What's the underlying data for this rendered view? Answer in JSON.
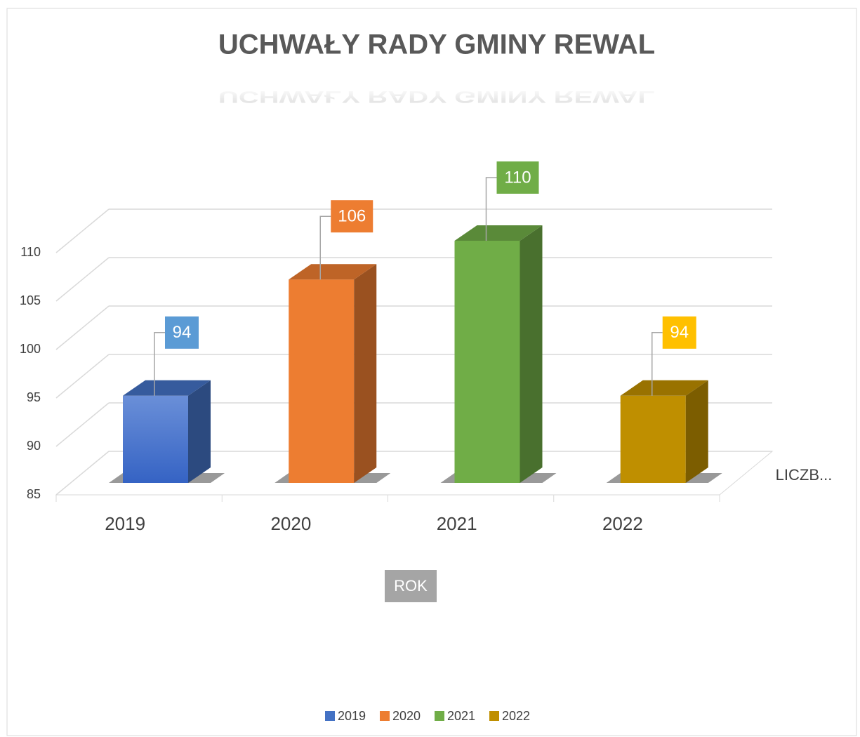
{
  "chart_data": {
    "type": "bar3d",
    "title": "UCHWAŁY RADY GMINY REWAL",
    "categories": [
      "2019",
      "2020",
      "2021",
      "2022"
    ],
    "values": [
      94,
      106,
      110,
      94
    ],
    "colors": [
      "#4472c4",
      "#ed7d31",
      "#70ad47",
      "#bf8f00"
    ],
    "label_colors": [
      "#5b9bd5",
      "#ed7d31",
      "#70ad47",
      "#ffc000"
    ],
    "series_name": "LICZB...",
    "xlabel": "ROK",
    "ylim": [
      85,
      110
    ],
    "yticks": [
      85,
      90,
      95,
      100,
      105,
      110
    ],
    "grid": true,
    "legend": "bottom"
  }
}
